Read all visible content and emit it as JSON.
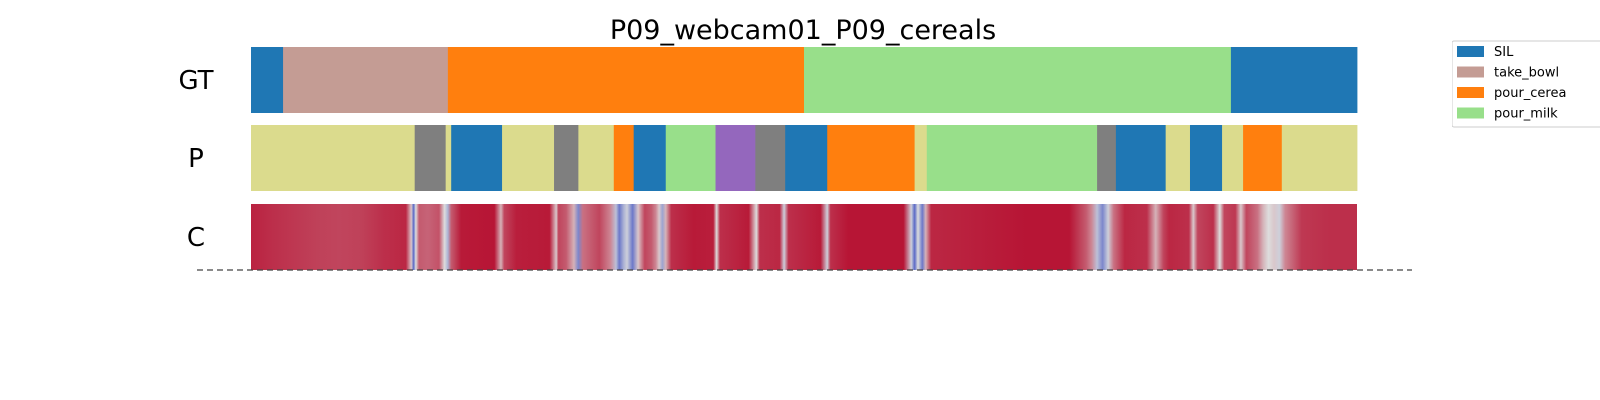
{
  "chart_data": {
    "type": "segmentation_timeline",
    "title": "P09_webcam01_P09_cereals",
    "x_range": [
      0,
      1000
    ],
    "rows": [
      {
        "label": "GT",
        "segments": [
          {
            "start": 0,
            "end": 29,
            "class": "SIL"
          },
          {
            "start": 29,
            "end": 178,
            "class": "take_bowl"
          },
          {
            "start": 178,
            "end": 500,
            "class": "pour_cereals"
          },
          {
            "start": 500,
            "end": 886,
            "class": "pour_milk"
          },
          {
            "start": 886,
            "end": 1000,
            "class": "SIL"
          }
        ]
      },
      {
        "label": "P",
        "segments": [
          {
            "start": 0,
            "end": 148,
            "class": "c_olive"
          },
          {
            "start": 148,
            "end": 176,
            "class": "c_gray"
          },
          {
            "start": 176,
            "end": 181,
            "class": "c_olive"
          },
          {
            "start": 181,
            "end": 227,
            "class": "SIL"
          },
          {
            "start": 227,
            "end": 274,
            "class": "c_olive"
          },
          {
            "start": 274,
            "end": 296,
            "class": "c_gray"
          },
          {
            "start": 296,
            "end": 328,
            "class": "c_olive"
          },
          {
            "start": 328,
            "end": 346,
            "class": "pour_cereals"
          },
          {
            "start": 346,
            "end": 375,
            "class": "SIL"
          },
          {
            "start": 375,
            "end": 420,
            "class": "pour_milk"
          },
          {
            "start": 420,
            "end": 456,
            "class": "c_purple"
          },
          {
            "start": 456,
            "end": 483,
            "class": "c_gray"
          },
          {
            "start": 483,
            "end": 521,
            "class": "SIL"
          },
          {
            "start": 521,
            "end": 600,
            "class": "pour_cereals"
          },
          {
            "start": 600,
            "end": 611,
            "class": "c_olive"
          },
          {
            "start": 611,
            "end": 765,
            "class": "pour_milk"
          },
          {
            "start": 765,
            "end": 782,
            "class": "c_gray"
          },
          {
            "start": 782,
            "end": 827,
            "class": "SIL"
          },
          {
            "start": 827,
            "end": 849,
            "class": "c_olive"
          },
          {
            "start": 849,
            "end": 878,
            "class": "SIL"
          },
          {
            "start": 878,
            "end": 897,
            "class": "c_olive"
          },
          {
            "start": 897,
            "end": 932,
            "class": "pour_cereals"
          },
          {
            "start": 932,
            "end": 1000,
            "class": "c_olive"
          }
        ]
      },
      {
        "label": "C",
        "confidence": [
          {
            "x": 0,
            "v": 0.93
          },
          {
            "x": 20,
            "v": 0.9
          },
          {
            "x": 40,
            "v": 0.88
          },
          {
            "x": 60,
            "v": 0.86
          },
          {
            "x": 80,
            "v": 0.85
          },
          {
            "x": 100,
            "v": 0.86
          },
          {
            "x": 120,
            "v": 0.9
          },
          {
            "x": 140,
            "v": 0.92
          },
          {
            "x": 145,
            "v": 0.55
          },
          {
            "x": 147,
            "v": 0.1
          },
          {
            "x": 149,
            "v": 0.5
          },
          {
            "x": 152,
            "v": 0.8
          },
          {
            "x": 160,
            "v": 0.78
          },
          {
            "x": 170,
            "v": 0.82
          },
          {
            "x": 175,
            "v": 0.5
          },
          {
            "x": 178,
            "v": 0.35
          },
          {
            "x": 181,
            "v": 0.8
          },
          {
            "x": 190,
            "v": 0.95
          },
          {
            "x": 220,
            "v": 0.96
          },
          {
            "x": 226,
            "v": 0.6
          },
          {
            "x": 229,
            "v": 0.85
          },
          {
            "x": 240,
            "v": 0.94
          },
          {
            "x": 270,
            "v": 0.95
          },
          {
            "x": 276,
            "v": 0.55
          },
          {
            "x": 278,
            "v": 0.85
          },
          {
            "x": 285,
            "v": 0.8
          },
          {
            "x": 292,
            "v": 0.6
          },
          {
            "x": 296,
            "v": 0.2
          },
          {
            "x": 300,
            "v": 0.75
          },
          {
            "x": 315,
            "v": 0.85
          },
          {
            "x": 325,
            "v": 0.7
          },
          {
            "x": 330,
            "v": 0.4
          },
          {
            "x": 333,
            "v": 0.15
          },
          {
            "x": 337,
            "v": 0.35
          },
          {
            "x": 340,
            "v": 0.45
          },
          {
            "x": 345,
            "v": 0.15
          },
          {
            "x": 350,
            "v": 0.55
          },
          {
            "x": 356,
            "v": 0.85
          },
          {
            "x": 362,
            "v": 0.8
          },
          {
            "x": 366,
            "v": 0.7
          },
          {
            "x": 369,
            "v": 0.55
          },
          {
            "x": 372,
            "v": 0.3
          },
          {
            "x": 375,
            "v": 0.6
          },
          {
            "x": 380,
            "v": 0.9
          },
          {
            "x": 400,
            "v": 0.95
          },
          {
            "x": 418,
            "v": 0.94
          },
          {
            "x": 421,
            "v": 0.5
          },
          {
            "x": 424,
            "v": 0.9
          },
          {
            "x": 450,
            "v": 0.95
          },
          {
            "x": 457,
            "v": 0.5
          },
          {
            "x": 460,
            "v": 0.9
          },
          {
            "x": 478,
            "v": 0.92
          },
          {
            "x": 482,
            "v": 0.45
          },
          {
            "x": 486,
            "v": 0.9
          },
          {
            "x": 515,
            "v": 0.95
          },
          {
            "x": 521,
            "v": 0.45
          },
          {
            "x": 524,
            "v": 0.9
          },
          {
            "x": 540,
            "v": 0.96
          },
          {
            "x": 590,
            "v": 0.96
          },
          {
            "x": 597,
            "v": 0.45
          },
          {
            "x": 600,
            "v": 0.1
          },
          {
            "x": 603,
            "v": 0.5
          },
          {
            "x": 607,
            "v": 0.15
          },
          {
            "x": 610,
            "v": 0.6
          },
          {
            "x": 615,
            "v": 0.92
          },
          {
            "x": 700,
            "v": 0.96
          },
          {
            "x": 740,
            "v": 0.96
          },
          {
            "x": 755,
            "v": 0.8
          },
          {
            "x": 760,
            "v": 0.7
          },
          {
            "x": 765,
            "v": 0.4
          },
          {
            "x": 770,
            "v": 0.2
          },
          {
            "x": 775,
            "v": 0.45
          },
          {
            "x": 780,
            "v": 0.75
          },
          {
            "x": 790,
            "v": 0.92
          },
          {
            "x": 810,
            "v": 0.9
          },
          {
            "x": 818,
            "v": 0.6
          },
          {
            "x": 825,
            "v": 0.85
          },
          {
            "x": 830,
            "v": 0.92
          },
          {
            "x": 848,
            "v": 0.9
          },
          {
            "x": 852,
            "v": 0.55
          },
          {
            "x": 856,
            "v": 0.85
          },
          {
            "x": 870,
            "v": 0.9
          },
          {
            "x": 876,
            "v": 0.5
          },
          {
            "x": 880,
            "v": 0.85
          },
          {
            "x": 890,
            "v": 0.88
          },
          {
            "x": 895,
            "v": 0.55
          },
          {
            "x": 900,
            "v": 0.85
          },
          {
            "x": 910,
            "v": 0.75
          },
          {
            "x": 915,
            "v": 0.6
          },
          {
            "x": 920,
            "v": 0.5
          },
          {
            "x": 925,
            "v": 0.55
          },
          {
            "x": 930,
            "v": 0.45
          },
          {
            "x": 935,
            "v": 0.7
          },
          {
            "x": 950,
            "v": 0.88
          },
          {
            "x": 975,
            "v": 0.9
          },
          {
            "x": 1000,
            "v": 0.9
          }
        ]
      }
    ],
    "legend": {
      "placement": "upper-right-outside",
      "entries": [
        {
          "class": "SIL",
          "label": "SIL"
        },
        {
          "class": "take_bowl",
          "label": "take_bowl"
        },
        {
          "class": "pour_cereals",
          "label": "pour_cerea"
        },
        {
          "class": "pour_milk",
          "label": "pour_milk"
        }
      ]
    },
    "colors": {
      "SIL": "#1f77b4",
      "take_bowl": "#c49c94",
      "pour_cereals": "#ff7f0e",
      "pour_milk": "#98df8a",
      "c_olive": "#dbdb8d",
      "c_gray": "#7f7f7f",
      "c_purple": "#9467bd"
    },
    "confidence_colormap": "coolwarm",
    "baseline_style": "dashed"
  }
}
